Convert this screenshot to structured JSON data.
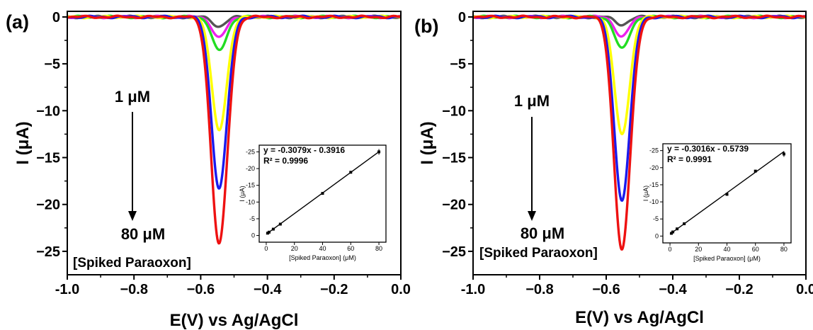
{
  "chart_data": [
    {
      "panel_label": "(a)",
      "type": "line",
      "xlabel": "E(V) vs Ag/AgCl",
      "ylabel": "I (μA)",
      "xlim": [
        -1.0,
        0.0
      ],
      "ylim": [
        -27.5,
        0.6
      ],
      "xticks": [
        -1.0,
        -0.8,
        -0.6,
        -0.4,
        -0.2,
        0.0
      ],
      "xtick_labels": [
        "-1.0",
        "−0.8",
        "−0.6",
        "−0.4",
        "−0.2",
        "0.0"
      ],
      "yticks": [
        0,
        -5,
        -10,
        -15,
        -20,
        -25
      ],
      "ytick_labels": [
        "0",
        "−5",
        "−10",
        "−15",
        "−20",
        "−25"
      ],
      "grid": false,
      "peak_potential": -0.545,
      "series": [
        {
          "color": "#555555",
          "peak": -1.0
        },
        {
          "color": "#ee22ee",
          "peak": -2.2
        },
        {
          "color": "#22dd22",
          "peak": -3.6
        },
        {
          "color": "#ffff00",
          "peak": -12.0
        },
        {
          "color": "#1a1aee",
          "peak": -18.2
        },
        {
          "color": "#ee1111",
          "peak": -24.2
        }
      ],
      "annotations": {
        "start": "1 μM",
        "end": "80 μM",
        "analyte": "[Spiked Paraoxon]"
      },
      "inset": {
        "type": "scatter",
        "xlabel": "[Spiked Paraoxon] (μM)",
        "ylabel": "I (μA)",
        "xlim": [
          -5,
          85
        ],
        "ylim": [
          2,
          -27
        ],
        "xticks": [
          0,
          20,
          40,
          60,
          80
        ],
        "yticks": [
          0,
          -5,
          -10,
          -15,
          -20,
          -25
        ],
        "ytick_labels": [
          "0",
          "-5",
          "-10",
          "-15",
          "-20",
          "-25"
        ],
        "equation": "y   = -0.3079x - 0.3916",
        "r2": "R² = 0.9996",
        "slope": -0.3079,
        "intercept": -0.3916,
        "points": [
          {
            "x": 1,
            "y": -0.7
          },
          {
            "x": 2,
            "y": -1.0
          },
          {
            "x": 5,
            "y": -1.9
          },
          {
            "x": 10,
            "y": -3.4
          },
          {
            "x": 40,
            "y": -12.6
          },
          {
            "x": 60,
            "y": -18.9
          },
          {
            "x": 80,
            "y": -25.0
          }
        ]
      }
    },
    {
      "panel_label": "(b)",
      "type": "line",
      "xlabel": "E(V) vs Ag/AgCl",
      "ylabel": "I (μA)",
      "xlim": [
        -1.0,
        0.0
      ],
      "ylim": [
        -27.5,
        0.6
      ],
      "xticks": [
        -1.0,
        -0.8,
        -0.6,
        -0.4,
        -0.2,
        0.0
      ],
      "xtick_labels": [
        "-1.0",
        "−0.8",
        "−0.6",
        "−0.4",
        "−0.2",
        "0.0"
      ],
      "yticks": [
        0,
        -5,
        -10,
        -15,
        -20,
        -25
      ],
      "ytick_labels": [
        "0",
        "−5",
        "−10",
        "−15",
        "−20",
        "−25"
      ],
      "grid": false,
      "peak_potential": -0.553,
      "series": [
        {
          "color": "#555555",
          "peak": -0.8
        },
        {
          "color": "#ee22ee",
          "peak": -2.1
        },
        {
          "color": "#22dd22",
          "peak": -3.4
        },
        {
          "color": "#ffff00",
          "peak": -12.5
        },
        {
          "color": "#1a1aee",
          "peak": -19.5
        },
        {
          "color": "#ee1111",
          "peak": -24.8
        }
      ],
      "annotations": {
        "start": "1 μM",
        "end": "80 μM",
        "analyte": "[Spiked Paraoxon]"
      },
      "inset": {
        "type": "scatter",
        "xlabel": "[Spiked Paraoxon] (μM)",
        "ylabel": "I (μA)",
        "xlim": [
          -5,
          85
        ],
        "ylim": [
          2,
          -27
        ],
        "xticks": [
          0,
          20,
          40,
          60,
          80
        ],
        "yticks": [
          0,
          -5,
          -10,
          -15,
          -20,
          -25
        ],
        "ytick_labels": [
          "0",
          "-5",
          "-10",
          "-15",
          "-20",
          "-25"
        ],
        "equation": "y   = -0.3016x - 0.5739",
        "r2": "R² = 0.9991",
        "slope": -0.3016,
        "intercept": -0.5739,
        "points": [
          {
            "x": 1,
            "y": -0.8
          },
          {
            "x": 2,
            "y": -1.2
          },
          {
            "x": 5,
            "y": -2.1
          },
          {
            "x": 10,
            "y": -3.6
          },
          {
            "x": 40,
            "y": -12.2
          },
          {
            "x": 60,
            "y": -19.0
          },
          {
            "x": 80,
            "y": -24.0
          }
        ]
      }
    }
  ]
}
